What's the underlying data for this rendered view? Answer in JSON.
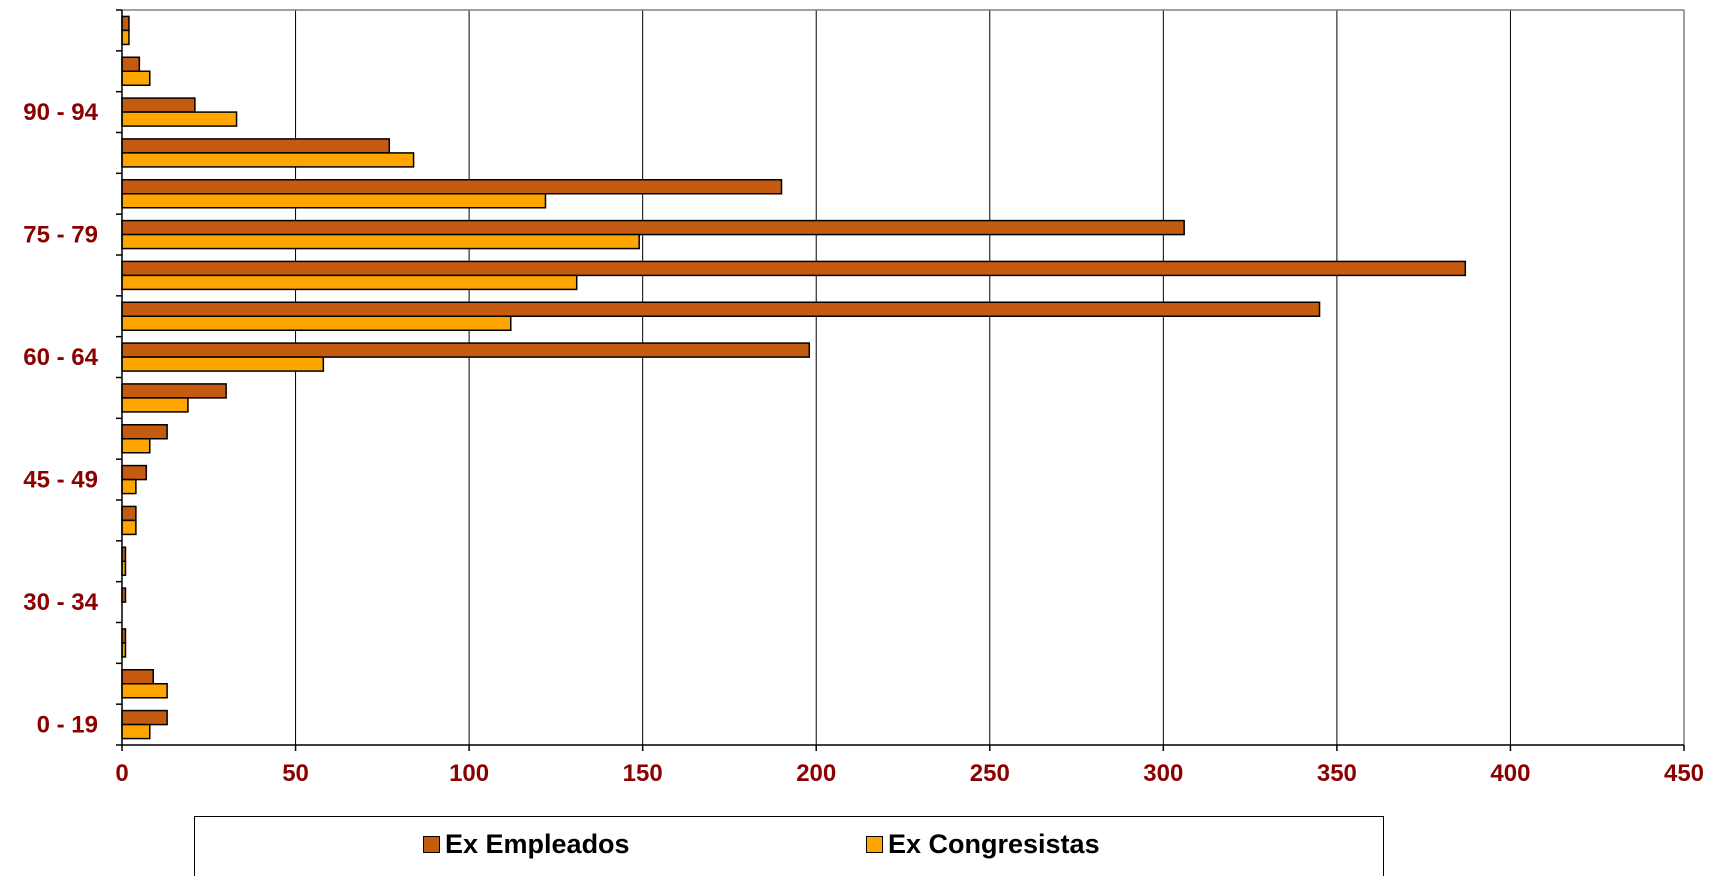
{
  "chart_data": {
    "type": "bar",
    "orientation": "horizontal",
    "categories": [
      "0 - 19",
      "",
      "",
      "30 - 34",
      "",
      "",
      "45 - 49",
      "",
      "",
      "60 - 64",
      "",
      "",
      "75 - 79",
      "",
      "",
      "90 - 94",
      "",
      ""
    ],
    "series": [
      {
        "name": "Ex Empleados",
        "color": "#C55A11",
        "values": [
          13,
          9,
          1,
          1,
          1,
          4,
          7,
          13,
          30,
          198,
          345,
          387,
          306,
          190,
          77,
          21,
          5,
          2
        ]
      },
      {
        "name": "Ex Congresistas",
        "color": "#FFA500",
        "values": [
          8,
          13,
          1,
          0,
          1,
          4,
          4,
          8,
          19,
          58,
          112,
          131,
          149,
          122,
          84,
          33,
          8,
          2
        ]
      }
    ],
    "x_ticks": [
      "0",
      "50",
      "100",
      "150",
      "200",
      "250",
      "300",
      "350",
      "400",
      "450"
    ],
    "xlim": [
      0,
      450
    ],
    "grid": "vertical",
    "legend_position": "bottom",
    "title": "",
    "xlabel": "",
    "ylabel": "",
    "label_color": "#8B0000"
  }
}
